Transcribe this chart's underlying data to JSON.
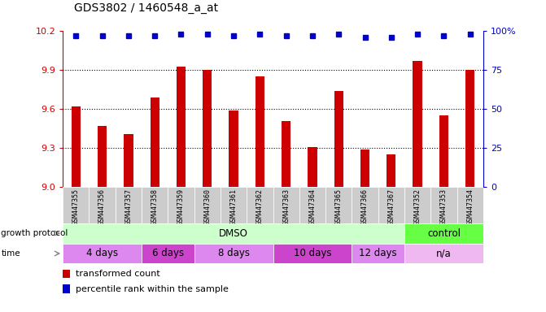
{
  "title": "GDS3802 / 1460548_a_at",
  "samples": [
    "GSM447355",
    "GSM447356",
    "GSM447357",
    "GSM447358",
    "GSM447359",
    "GSM447360",
    "GSM447361",
    "GSM447362",
    "GSM447363",
    "GSM447364",
    "GSM447365",
    "GSM447366",
    "GSM447367",
    "GSM447352",
    "GSM447353",
    "GSM447354"
  ],
  "bar_values": [
    9.62,
    9.47,
    9.41,
    9.69,
    9.93,
    9.9,
    9.59,
    9.85,
    9.51,
    9.31,
    9.74,
    9.29,
    9.25,
    9.97,
    9.55,
    9.9
  ],
  "percentile_values": [
    97,
    97,
    97,
    97,
    98,
    98,
    97,
    98,
    97,
    97,
    98,
    96,
    96,
    98,
    97,
    98
  ],
  "bar_color": "#cc0000",
  "percentile_color": "#0000cc",
  "ylim_left": [
    9.0,
    10.2
  ],
  "ylim_right": [
    0,
    100
  ],
  "yticks_left": [
    9.0,
    9.3,
    9.6,
    9.9,
    10.2
  ],
  "yticks_right": [
    0,
    25,
    50,
    75,
    100
  ],
  "ytick_labels_right": [
    "0",
    "25",
    "50",
    "75",
    "100%"
  ],
  "hlines": [
    9.3,
    9.6,
    9.9
  ],
  "growth_protocol_groups": [
    {
      "label": "DMSO",
      "start": 0,
      "end": 13,
      "color": "#ccffcc"
    },
    {
      "label": "control",
      "start": 13,
      "end": 16,
      "color": "#66ff44"
    }
  ],
  "time_groups": [
    {
      "label": "4 days",
      "start": 0,
      "end": 3,
      "color": "#dd88ee"
    },
    {
      "label": "6 days",
      "start": 3,
      "end": 5,
      "color": "#cc44cc"
    },
    {
      "label": "8 days",
      "start": 5,
      "end": 8,
      "color": "#dd88ee"
    },
    {
      "label": "10 days",
      "start": 8,
      "end": 11,
      "color": "#cc44cc"
    },
    {
      "label": "12 days",
      "start": 11,
      "end": 13,
      "color": "#dd88ee"
    },
    {
      "label": "n/a",
      "start": 13,
      "end": 16,
      "color": "#f0b8f0"
    }
  ],
  "legend_items": [
    {
      "label": "transformed count",
      "color": "#cc0000"
    },
    {
      "label": "percentile rank within the sample",
      "color": "#0000cc"
    }
  ],
  "background_color": "#ffffff",
  "sample_bg_color": "#cccccc"
}
